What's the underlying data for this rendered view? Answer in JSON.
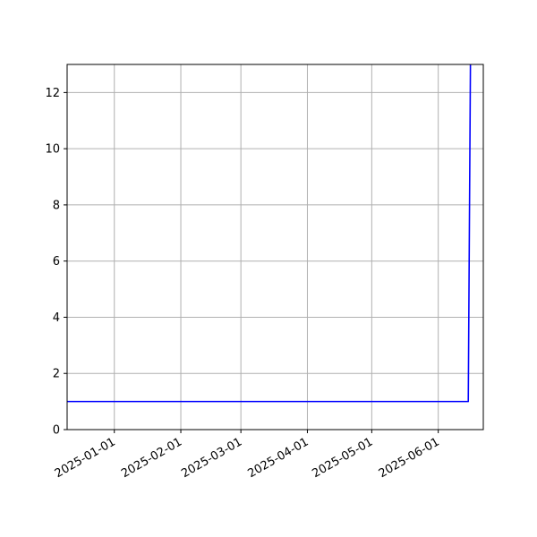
{
  "chart_data": {
    "type": "line",
    "title": "",
    "xlabel": "",
    "ylabel": "",
    "x_axis_type": "date",
    "xlim": [
      "2024-12-10",
      "2025-06-22"
    ],
    "ylim": [
      0,
      13
    ],
    "grid": true,
    "legend": "none",
    "x_ticks": [
      "2025-01-01",
      "2025-02-01",
      "2025-03-01",
      "2025-04-01",
      "2025-05-01",
      "2025-06-01"
    ],
    "y_ticks": [
      0,
      2,
      4,
      6,
      8,
      10,
      12
    ],
    "series": [
      {
        "color": "#0000ff",
        "x": [
          "2024-12-10",
          "2025-06-15",
          "2025-06-16"
        ],
        "y": [
          1,
          1,
          13
        ]
      }
    ]
  },
  "colors": {
    "background": "#ffffff",
    "grid": "#b0b0b0",
    "axes": "#000000"
  }
}
